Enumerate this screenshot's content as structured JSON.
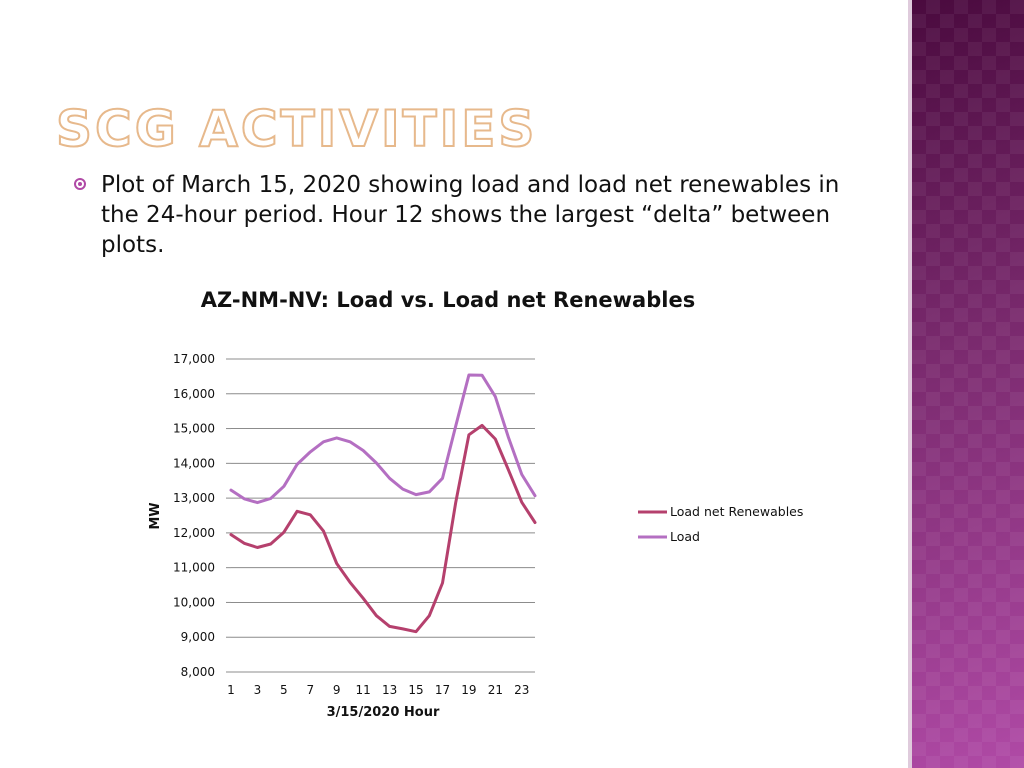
{
  "slide": {
    "title": "SCG Activities",
    "bullet": "Plot of March 15, 2020 showing load and load net renewables in the 24-hour period. Hour 12 shows the largest “delta” between plots."
  },
  "colors": {
    "side_panel": "#7a2a6e",
    "title_outline": "#e7b98c",
    "bullet_icon": "#b04aa6",
    "gridline": "#8c8c8c"
  },
  "chart_data": {
    "type": "line",
    "title": "AZ-NM-NV: Load vs. Load net Renewables",
    "xlabel": "3/15/2020 Hour",
    "ylabel": "MW",
    "x": [
      1,
      2,
      3,
      4,
      5,
      6,
      7,
      8,
      9,
      10,
      11,
      12,
      13,
      14,
      15,
      16,
      17,
      18,
      19,
      20,
      21,
      22,
      23,
      24
    ],
    "x_tick_labels": [
      "1",
      "3",
      "5",
      "7",
      "9",
      "11",
      "13",
      "15",
      "17",
      "19",
      "21",
      "23"
    ],
    "y_tick_labels": [
      "8,000",
      "9,000",
      "10,000",
      "11,000",
      "12,000",
      "13,000",
      "14,000",
      "15,000",
      "16,000",
      "17,000"
    ],
    "ylim": [
      8000,
      17000
    ],
    "grid": "horizontal",
    "legend_position": "right",
    "series": [
      {
        "name": "Load net Renewables",
        "color": "#b5406d",
        "values": [
          11950,
          11700,
          11580,
          11680,
          12020,
          12620,
          12520,
          12050,
          11120,
          10580,
          10120,
          9620,
          9310,
          9240,
          9160,
          9620,
          10560,
          12870,
          14820,
          15090,
          14700,
          13800,
          12880,
          12300
        ]
      },
      {
        "name": "Load",
        "color": "#b46fc2",
        "values": [
          13230,
          12980,
          12870,
          12990,
          13340,
          13970,
          14330,
          14620,
          14730,
          14620,
          14370,
          14010,
          13570,
          13260,
          13100,
          13180,
          13570,
          15070,
          16540,
          16530,
          15920,
          14730,
          13680,
          13070
        ]
      }
    ]
  }
}
